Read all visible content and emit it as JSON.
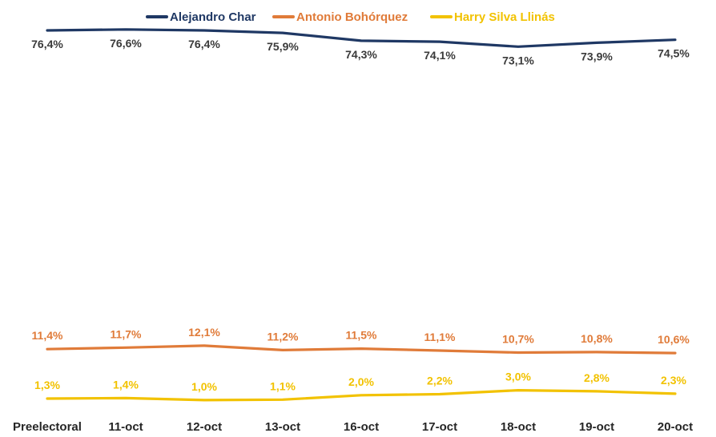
{
  "chart_data": {
    "type": "line",
    "title": "",
    "xlabel": "",
    "ylabel": "",
    "ylim": [
      0,
      80
    ],
    "grid": false,
    "legend_position": "top-center",
    "categories": [
      "Preelectoral",
      "11-oct",
      "12-oct",
      "13-oct",
      "16-oct",
      "17-oct",
      "18-oct",
      "19-oct",
      "20-oct"
    ],
    "series": [
      {
        "name": "Alejandro Char",
        "color": "#1F3864",
        "values": [
          76.4,
          76.6,
          76.4,
          75.9,
          74.3,
          74.1,
          73.1,
          73.9,
          74.5
        ],
        "labels": [
          "76,4%",
          "76,6%",
          "76,4%",
          "75,9%",
          "74,3%",
          "74,1%",
          "73,1%",
          "73,9%",
          "74,5%"
        ]
      },
      {
        "name": "Antonio Bohórquez",
        "color": "#E07B39",
        "values": [
          11.4,
          11.7,
          12.1,
          11.2,
          11.5,
          11.1,
          10.7,
          10.8,
          10.6
        ],
        "labels": [
          "11,4%",
          "11,7%",
          "12,1%",
          "11,2%",
          "11,5%",
          "11,1%",
          "10,7%",
          "10,8%",
          "10,6%"
        ]
      },
      {
        "name": "Harry Silva Llinás",
        "color": "#F2C200",
        "values": [
          1.3,
          1.4,
          1.0,
          1.1,
          2.0,
          2.2,
          3.0,
          2.8,
          2.3
        ],
        "labels": [
          "1,3%",
          "1,4%",
          "1,0%",
          "1,1%",
          "2,0%",
          "2,2%",
          "3,0%",
          "2,8%",
          "2,3%"
        ]
      }
    ]
  }
}
